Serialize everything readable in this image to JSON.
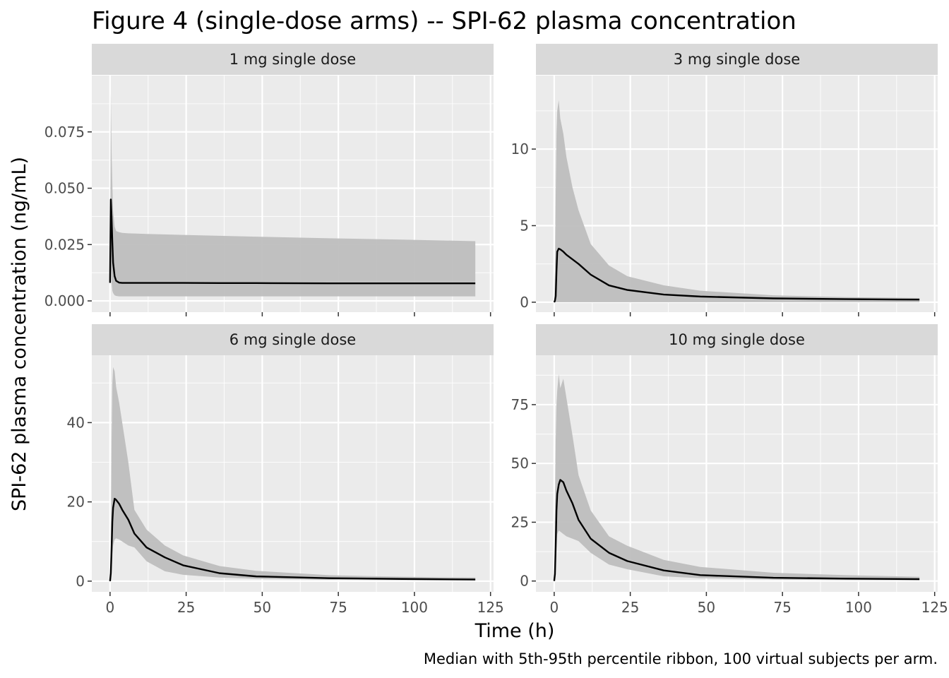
{
  "chart_data": {
    "type": "line",
    "title": "Figure 4 (single-dose arms) -- SPI-62 plasma concentration",
    "xlabel": "Time (h)",
    "ylabel": "SPI-62 plasma concentration (ng/mL)",
    "caption": "Median with 5th-95th percentile ribbon, 100 virtual subjects per arm.",
    "xlim": [
      -6,
      126
    ],
    "x_ticks": [
      0,
      25,
      50,
      75,
      100,
      125
    ],
    "grid": true,
    "colors": {
      "panel_background": "#ebebeb",
      "strip_background": "#d9d9d9",
      "grid_major": "#ffffff",
      "ribbon": "#bebebe",
      "median_line": "#000000",
      "tick_label": "#4d4d4d"
    },
    "panels": [
      {
        "strip": "1 mg single dose",
        "ylim": [
          -0.005,
          0.1
        ],
        "y_ticks": [
          0,
          0.025,
          0.05,
          0.075
        ],
        "y_tick_labels": [
          "0.000",
          "0.025",
          "0.050",
          "0.075"
        ],
        "x": [
          0,
          0.25,
          0.5,
          0.75,
          1,
          1.5,
          2,
          3,
          4,
          6,
          8,
          12,
          24,
          36,
          48,
          72,
          96,
          120
        ],
        "median": [
          0.008,
          0.045,
          0.037,
          0.026,
          0.017,
          0.011,
          0.0089,
          0.0081,
          0.008,
          0.008,
          0.008,
          0.008,
          0.008,
          0.0079,
          0.0079,
          0.0078,
          0.0078,
          0.0078
        ],
        "p5": [
          0.008,
          0.018,
          0.008,
          0.0045,
          0.0035,
          0.0025,
          0.0022,
          0.002,
          0.002,
          0.002,
          0.002,
          0.002,
          0.002,
          0.002,
          0.002,
          0.002,
          0.002,
          0.002
        ],
        "p95": [
          0.008,
          0.092,
          0.066,
          0.052,
          0.04,
          0.033,
          0.031,
          0.0305,
          0.0302,
          0.03,
          0.0299,
          0.0297,
          0.0293,
          0.0289,
          0.0285,
          0.0278,
          0.0272,
          0.0265
        ]
      },
      {
        "strip": "3 mg single dose",
        "ylim": [
          -0.65,
          14.8
        ],
        "y_ticks": [
          0,
          5,
          10
        ],
        "y_tick_labels": [
          "0",
          "5",
          "10"
        ],
        "x": [
          0,
          0.25,
          0.5,
          0.75,
          1,
          1.5,
          2,
          3,
          4,
          6,
          8,
          12,
          18,
          24,
          36,
          48,
          72,
          96,
          120
        ],
        "median": [
          0,
          0.1,
          0.4,
          2.0,
          3.3,
          3.5,
          3.45,
          3.3,
          3.1,
          2.8,
          2.5,
          1.8,
          1.1,
          0.8,
          0.5,
          0.37,
          0.25,
          0.2,
          0.17
        ],
        "p5": [
          0,
          0,
          0,
          0,
          0,
          0,
          0,
          0,
          0,
          0,
          0,
          0,
          0,
          0,
          0,
          0,
          0,
          0,
          0
        ],
        "p95": [
          0,
          2.0,
          7.0,
          11.0,
          12.5,
          13.2,
          12.0,
          11.0,
          9.5,
          7.5,
          6.0,
          3.8,
          2.4,
          1.7,
          1.1,
          0.75,
          0.45,
          0.33,
          0.28
        ]
      },
      {
        "strip": "6 mg single dose",
        "ylim": [
          -2.7,
          57
        ],
        "y_ticks": [
          0,
          20,
          40
        ],
        "y_tick_labels": [
          "0",
          "20",
          "40"
        ],
        "x": [
          0,
          0.25,
          0.5,
          0.75,
          1,
          1.5,
          2,
          3,
          4,
          6,
          8,
          12,
          18,
          24,
          36,
          48,
          72,
          96,
          120
        ],
        "median": [
          0,
          2,
          8,
          15,
          18.5,
          20.8,
          20.5,
          19.5,
          18,
          15.5,
          12,
          8.5,
          6,
          4,
          2,
          1.2,
          0.75,
          0.55,
          0.4
        ],
        "p5": [
          0,
          0.5,
          2,
          6,
          9,
          10.5,
          10.8,
          10.5,
          10,
          9,
          8.5,
          5,
          2.5,
          1.6,
          0.9,
          0.6,
          0.35,
          0.25,
          0.2
        ],
        "p95": [
          0,
          10,
          35,
          50,
          54,
          53,
          49,
          45,
          40,
          30,
          18,
          13,
          9,
          6.5,
          3.8,
          2.6,
          1.5,
          1.1,
          0.9
        ]
      },
      {
        "strip": "10 mg single dose",
        "ylim": [
          -4.6,
          96
        ],
        "y_ticks": [
          0,
          25,
          50,
          75
        ],
        "y_tick_labels": [
          "0",
          "25",
          "50",
          "75"
        ],
        "x": [
          0,
          0.25,
          0.5,
          0.75,
          1,
          1.5,
          2,
          3,
          4,
          6,
          8,
          12,
          18,
          24,
          36,
          48,
          72,
          96,
          120
        ],
        "median": [
          0,
          3,
          15,
          30,
          37,
          41,
          43,
          42,
          38.5,
          33,
          26,
          18,
          12,
          8.5,
          4.5,
          2.5,
          1.4,
          1.0,
          0.8
        ],
        "p5": [
          0,
          1,
          6,
          15,
          20,
          21.5,
          21,
          20,
          19,
          18,
          17,
          12,
          7,
          5,
          2,
          1.2,
          0.6,
          0.4,
          0.3
        ],
        "p95": [
          0,
          30,
          60,
          75,
          81,
          88,
          82,
          86,
          78,
          62,
          45,
          30,
          19,
          15,
          9,
          6,
          3.5,
          2.5,
          1.8
        ]
      }
    ]
  }
}
